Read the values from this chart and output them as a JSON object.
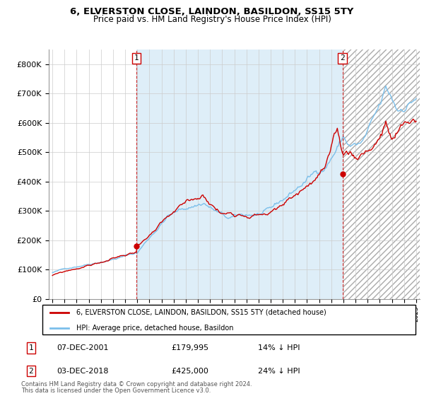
{
  "title": "6, ELVERSTON CLOSE, LAINDON, BASILDON, SS15 5TY",
  "subtitle": "Price paid vs. HM Land Registry's House Price Index (HPI)",
  "hpi_label": "HPI: Average price, detached house, Basildon",
  "property_label": "6, ELVERSTON CLOSE, LAINDON, BASILDON, SS15 5TY (detached house)",
  "footnote1": "Contains HM Land Registry data © Crown copyright and database right 2024.",
  "footnote2": "This data is licensed under the Open Government Licence v3.0.",
  "transaction1_date": "07-DEC-2001",
  "transaction1_price": "£179,995",
  "transaction1_hpi": "14% ↓ HPI",
  "transaction2_date": "03-DEC-2018",
  "transaction2_price": "£425,000",
  "transaction2_hpi": "24% ↓ HPI",
  "ylim": [
    0,
    850000
  ],
  "yticks": [
    0,
    100000,
    200000,
    300000,
    400000,
    500000,
    600000,
    700000,
    800000
  ],
  "hpi_color": "#7bbfea",
  "property_color": "#cc0000",
  "vline_color": "#cc0000",
  "shade_color": "#deeef8",
  "background_color": "#ffffff",
  "grid_color": "#cccccc",
  "tx1_x": 2001.92,
  "tx1_y": 179995,
  "tx2_x": 2018.92,
  "tx2_y": 425000,
  "xmin": 1995.0,
  "xmax": 2025.2
}
